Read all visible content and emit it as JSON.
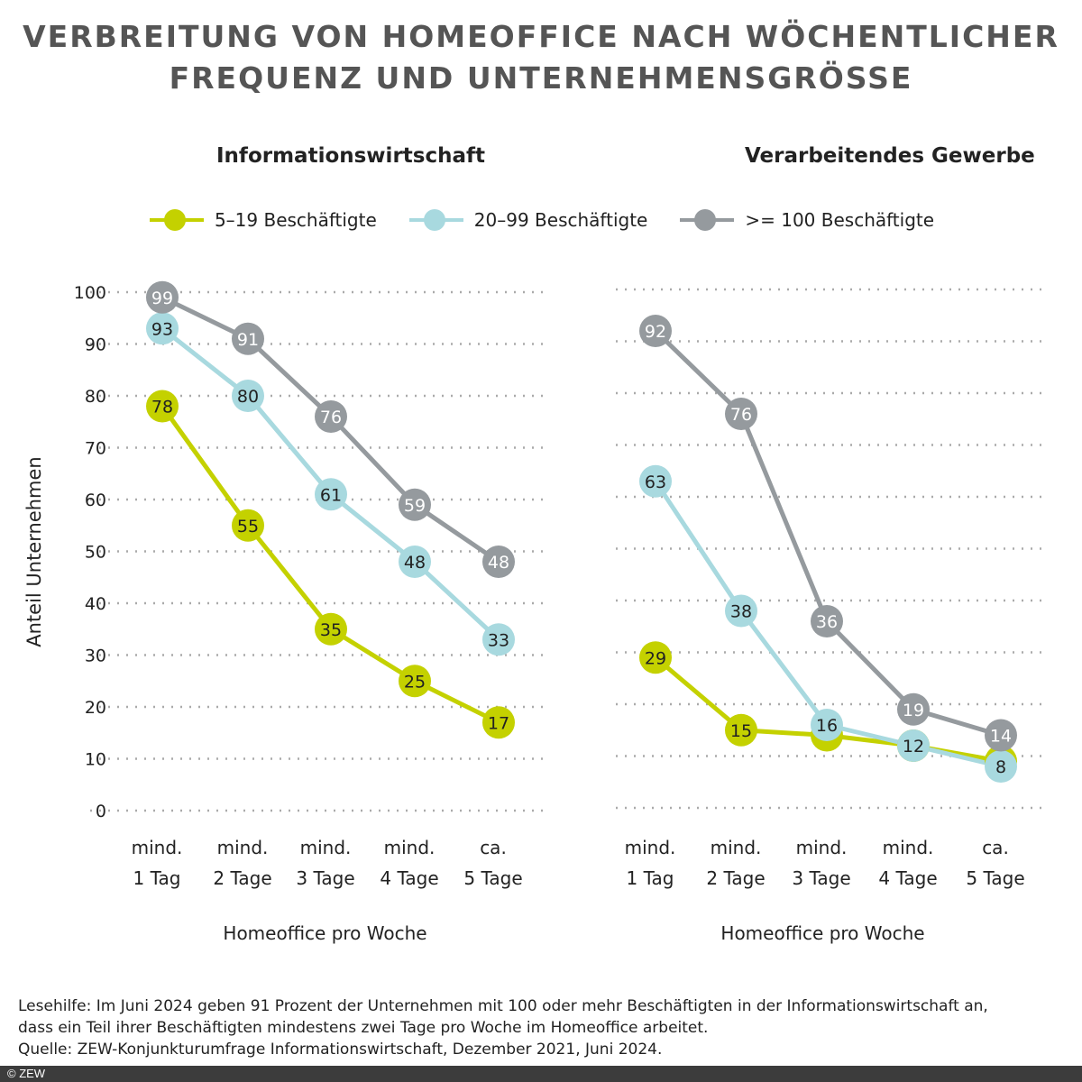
{
  "title_lines": [
    "VERBREITUNG VON HOMEOFFICE NACH WÖCHENTLICHER",
    "FREQUENZ UND UNTERNEHMENSGRÖSSE"
  ],
  "legend": [
    {
      "name": "5–19 Beschäftigte",
      "color": "#c4d100"
    },
    {
      "name": "20–99 Beschäftigte",
      "color": "#a8d9df"
    },
    {
      "name": ">= 100 Beschäftigte",
      "color": "#959a9e"
    }
  ],
  "chart_data": [
    {
      "type": "line",
      "title": "Informationswirtschaft",
      "ylabel": "Anteil Unternehmen",
      "xlabel": "Homeoffice pro Woche",
      "categories": [
        [
          "mind.",
          "1 Tag"
        ],
        [
          "mind.",
          "2 Tage"
        ],
        [
          "mind.",
          "3 Tage"
        ],
        [
          "mind.",
          "4 Tage"
        ],
        [
          "ca.",
          "5 Tage"
        ]
      ],
      "ylim": [
        0,
        100
      ],
      "yticks": [
        0,
        10,
        20,
        30,
        40,
        50,
        60,
        70,
        80,
        90,
        100
      ],
      "grid": true,
      "legend": "top",
      "series": [
        {
          "name": "5–19 Beschäftigte",
          "values": [
            78,
            55,
            35,
            25,
            17
          ],
          "labels": [
            "78",
            "55",
            "35",
            "25",
            "17"
          ]
        },
        {
          "name": "20–99 Beschäftigte",
          "values": [
            93,
            80,
            61,
            48,
            33
          ],
          "labels": [
            "93",
            "80",
            "61",
            "48",
            "33"
          ]
        },
        {
          "name": ">= 100 Beschäftigte",
          "values": [
            99,
            91,
            76,
            59,
            48
          ],
          "labels": [
            "99",
            "91",
            "76",
            "59",
            "48"
          ]
        }
      ]
    },
    {
      "type": "line",
      "title": "Verarbeitendes Gewerbe",
      "xlabel": "Homeoffice pro Woche",
      "categories": [
        [
          "mind.",
          "1 Tag"
        ],
        [
          "mind.",
          "2 Tage"
        ],
        [
          "mind.",
          "3 Tage"
        ],
        [
          "mind.",
          "4 Tage"
        ],
        [
          "ca.",
          "5 Tage"
        ]
      ],
      "ylim": [
        0,
        100
      ],
      "grid": true,
      "series": [
        {
          "name": "5–19 Beschäftigte",
          "values": [
            29,
            15,
            14,
            12,
            9
          ],
          "labels": [
            "29",
            "15",
            null,
            null,
            null
          ]
        },
        {
          "name": "20–99 Beschäftigte",
          "values": [
            63,
            38,
            16,
            12,
            8
          ],
          "labels": [
            "63",
            "38",
            "16",
            "12",
            "8"
          ]
        },
        {
          "name": ">= 100 Beschäftigte",
          "values": [
            92,
            76,
            36,
            19,
            14
          ],
          "labels": [
            "92",
            "76",
            "36",
            "19",
            "14"
          ]
        }
      ]
    }
  ],
  "footnote": [
    "Lesehilfe: Im Juni 2024 geben 91 Prozent der Unternehmen mit 100 oder mehr Beschäftigten in der Informationswirtschaft an,",
    "dass ein Teil ihrer Beschäftigten mindestens zwei Tage pro Woche im Homeoffice arbeitet.",
    "Quelle: ZEW-Konjunkturumfrage Informationswirtschaft, Dezember 2021, Juni 2024."
  ],
  "copyright": "© ZEW"
}
